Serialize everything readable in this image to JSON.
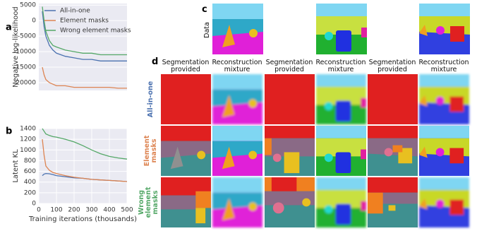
{
  "chart_data": [
    {
      "type": "line",
      "panel_label": "a",
      "ylabel": "Negative log-likelihood",
      "legend": "upper right",
      "grid": true,
      "x": [
        20,
        30,
        40,
        60,
        80,
        100,
        150,
        200,
        250,
        300,
        350,
        400,
        450,
        500
      ],
      "xlim": [
        0,
        500
      ],
      "ylim": [
        -22500,
        5500
      ],
      "yticks": [
        5000,
        0,
        -5000,
        -10000,
        -15000,
        -20000
      ],
      "series": [
        {
          "name": "All-in-one",
          "color": "#4c72b0",
          "values": [
            3000,
            -2000,
            -5000,
            -8000,
            -9500,
            -10500,
            -11500,
            -12000,
            -12500,
            -12500,
            -13000,
            -13000,
            -13000,
            -13000
          ]
        },
        {
          "name": "Element masks",
          "color": "#dd8452",
          "values": [
            -15000,
            -17500,
            -19000,
            -20000,
            -20500,
            -21000,
            -21000,
            -21500,
            -21500,
            -21500,
            -21500,
            -21500,
            -21800,
            -21800
          ]
        },
        {
          "name": "Wrong element masks",
          "color": "#55a868",
          "values": [
            4500,
            0,
            -3500,
            -6500,
            -8000,
            -8500,
            -9500,
            -10000,
            -10500,
            -10500,
            -11000,
            -11000,
            -11000,
            -11000
          ]
        }
      ]
    },
    {
      "type": "line",
      "panel_label": "b",
      "ylabel": "Latent KL",
      "xlabel": "Training iterations (thousands)",
      "grid": true,
      "x": [
        20,
        30,
        40,
        60,
        80,
        100,
        150,
        200,
        250,
        300,
        350,
        400,
        450,
        500
      ],
      "xlim": [
        0,
        500
      ],
      "ylim": [
        0,
        1400
      ],
      "xticks": [
        0,
        100,
        200,
        300,
        400,
        500
      ],
      "yticks": [
        0,
        200,
        400,
        600,
        800,
        1000,
        1200,
        1400
      ],
      "series": [
        {
          "name": "All-in-one",
          "color": "#4c72b0",
          "values": [
            520,
            550,
            560,
            555,
            540,
            520,
            500,
            480,
            470,
            450,
            440,
            430,
            420,
            410
          ]
        },
        {
          "name": "Element masks",
          "color": "#dd8452",
          "values": [
            1200,
            900,
            700,
            620,
            580,
            560,
            520,
            490,
            470,
            450,
            440,
            430,
            420,
            410
          ]
        },
        {
          "name": "Wrong element masks",
          "color": "#55a868",
          "values": [
            1400,
            1350,
            1300,
            1270,
            1250,
            1240,
            1200,
            1150,
            1080,
            1000,
            930,
            880,
            850,
            830
          ]
        }
      ]
    }
  ],
  "panels": {
    "c_label": "c",
    "d_label": "d",
    "data_row_label": "Data",
    "column_headers": [
      "Segmentation provided",
      "Reconstruction mixture",
      "Segmentation provided",
      "Reconstruction mixture",
      "Segmentation provided",
      "Reconstruction mixture"
    ],
    "row_labels": [
      "All-in-one",
      "Element masks",
      "Wrong element masks"
    ]
  }
}
